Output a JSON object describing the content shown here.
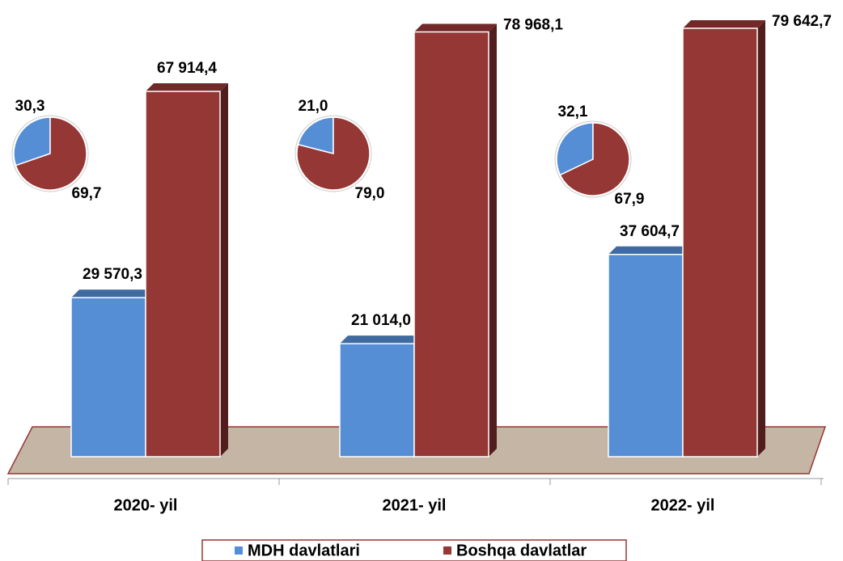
{
  "chart_data": {
    "type": "bar3d",
    "categories": [
      "2020- yil",
      "2021- yil",
      "2022- yil"
    ],
    "series": [
      {
        "name": "MDH davlatlari",
        "color": "#558ed5",
        "values": [
          29570.3,
          21014.0,
          37604.7
        ],
        "value_labels": [
          "29 570,3",
          "21 014,0",
          "37 604,7"
        ]
      },
      {
        "name": "Boshqa davlatlar",
        "color": "#953735",
        "values": [
          67914.4,
          78968.1,
          79642.7
        ],
        "value_labels": [
          "67 914,4",
          "78 968,1",
          "79 642,7"
        ]
      }
    ],
    "pies": [
      {
        "values": [
          30.3,
          69.7
        ],
        "value_labels": [
          "30,3",
          "69,7"
        ]
      },
      {
        "values": [
          21.0,
          79.0
        ],
        "value_labels": [
          "21,0",
          "79,0"
        ]
      },
      {
        "values": [
          32.1,
          67.9
        ],
        "value_labels": [
          "32,1",
          "67,9"
        ]
      }
    ],
    "legend": "bottom"
  }
}
